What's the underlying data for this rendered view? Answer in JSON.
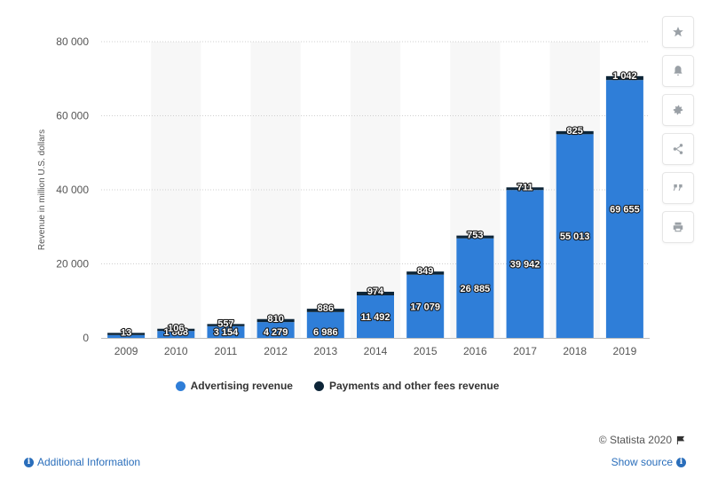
{
  "chart_data": {
    "type": "bar",
    "stacked": true,
    "categories": [
      "2009",
      "2010",
      "2011",
      "2012",
      "2013",
      "2014",
      "2015",
      "2016",
      "2017",
      "2018",
      "2019"
    ],
    "series": [
      {
        "name": "Advertising revenue",
        "color": "#2f7ed8",
        "values": [
          764,
          1868,
          3154,
          4279,
          6986,
          11492,
          17079,
          26885,
          39942,
          55013,
          69655
        ],
        "labels": [
          "",
          "1 868",
          "3 154",
          "4 279",
          "6 986",
          "11 492",
          "17 079",
          "26 885",
          "39 942",
          "55 013",
          "69 655"
        ]
      },
      {
        "name": "Payments and other fees revenue",
        "color": "#0d2538",
        "values": [
          13,
          106,
          557,
          810,
          886,
          974,
          849,
          753,
          711,
          825,
          1042
        ],
        "labels": [
          "13",
          "106",
          "557",
          "810",
          "886",
          "974",
          "849",
          "753",
          "711",
          "825",
          "1 042"
        ]
      }
    ],
    "ylabel": "Revenue in million U.S. dollars",
    "ylim": [
      0,
      80000
    ],
    "yticks": [
      0,
      20000,
      40000,
      60000,
      80000
    ],
    "ytick_labels": [
      "0",
      "20 000",
      "40 000",
      "60 000",
      "80 000"
    ],
    "grid": "dotted horizontal",
    "legend_position": "bottom"
  },
  "sidebar": {
    "icons": [
      "star-icon",
      "bell-icon",
      "gear-icon",
      "share-icon",
      "quote-icon",
      "print-icon"
    ]
  },
  "footer": {
    "additional_info": "Additional Information",
    "copyright": "© Statista 2020",
    "show_source": "Show source"
  }
}
